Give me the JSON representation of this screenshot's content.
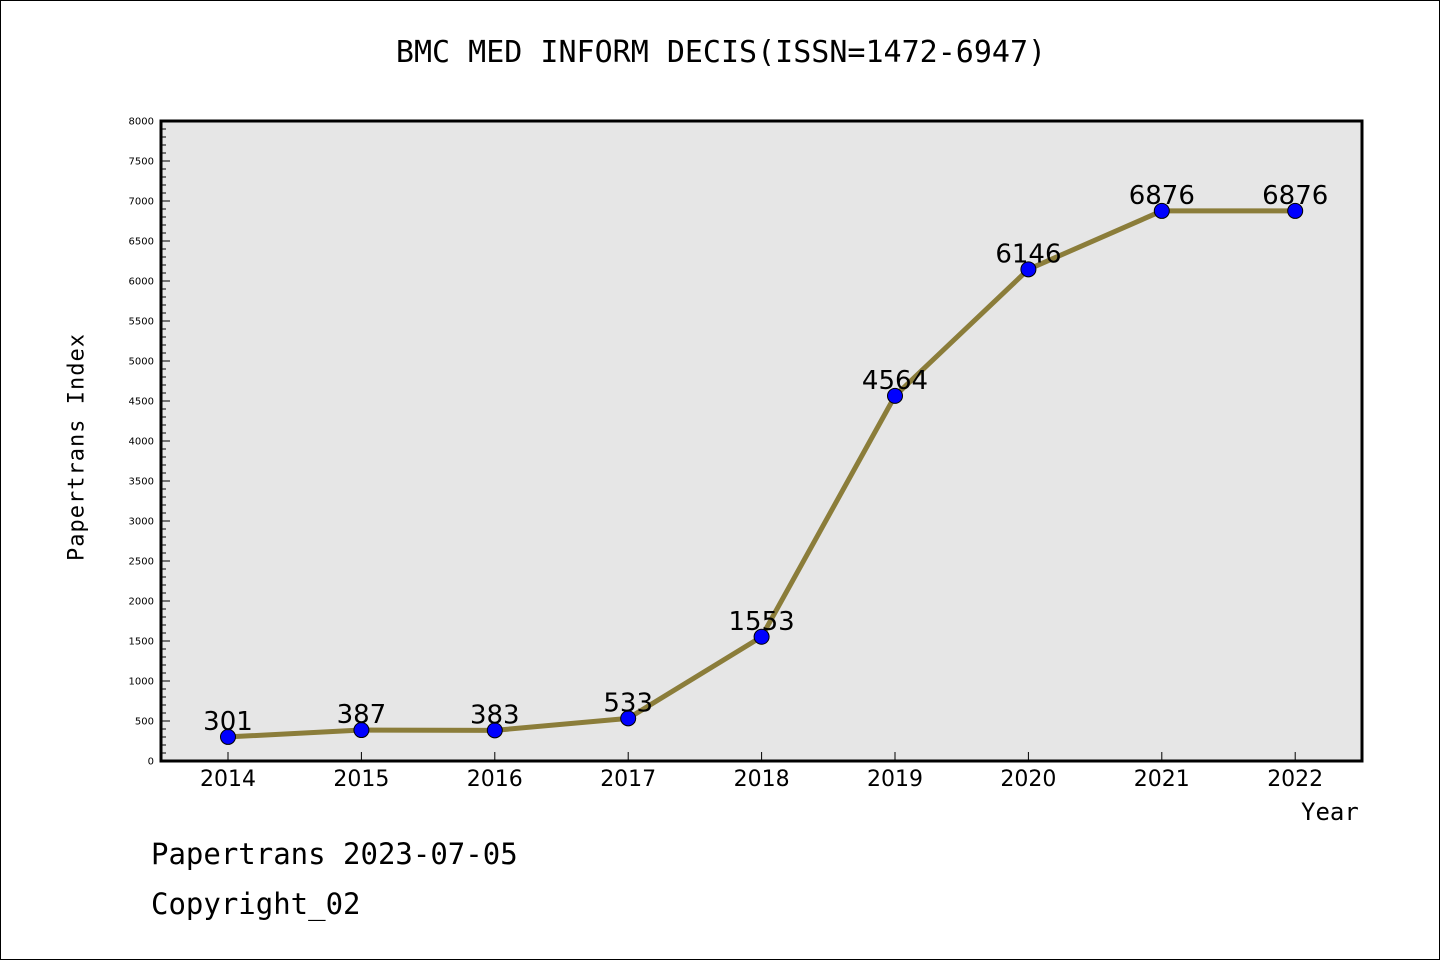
{
  "title": "BMC MED INFORM DECIS(ISSN=1472-6947)",
  "footer": {
    "line1": "Papertrans 2023-07-05",
    "line2": "Copyright_02"
  },
  "chart_data": {
    "type": "line",
    "title": "BMC MED INFORM DECIS(ISSN=1472-6947)",
    "xlabel": "Year",
    "ylabel": "Papertrans Index",
    "categories": [
      "2014",
      "2015",
      "2016",
      "2017",
      "2018",
      "2019",
      "2020",
      "2021",
      "2022"
    ],
    "series": [
      {
        "values": [
          301,
          387,
          383,
          533,
          1553,
          4564,
          6146,
          6876,
          6876
        ]
      }
    ],
    "ylim": [
      0,
      8000
    ],
    "y_ticks": [
      0,
      500,
      1000,
      1500,
      2000,
      2500,
      3000,
      3500,
      4000,
      4500,
      5000,
      5500,
      6000,
      6500,
      7000,
      7500,
      8000
    ],
    "grid": false,
    "legend": "none",
    "colors": {
      "line": "#8B7D3A",
      "marker": "#0000FF",
      "plot_background": "#E6E6E6"
    }
  }
}
